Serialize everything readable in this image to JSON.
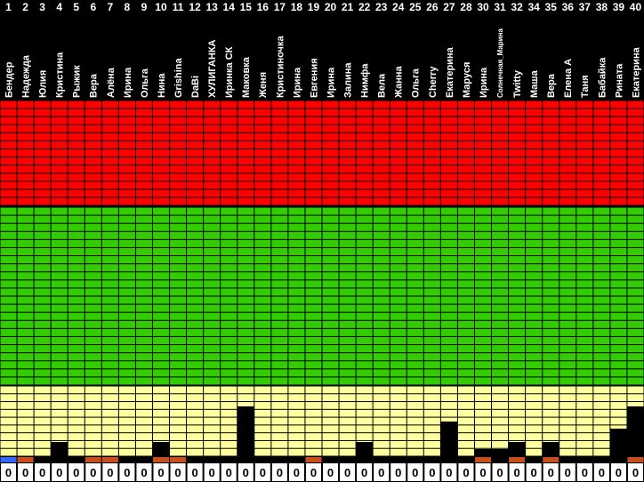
{
  "columns": [
    {
      "number": 1,
      "name": "Бендер",
      "value": 0
    },
    {
      "number": 2,
      "name": "Надежда",
      "value": 0
    },
    {
      "number": 3,
      "name": "Юлия",
      "value": 0
    },
    {
      "number": 4,
      "name": "Кристина",
      "value": 0
    },
    {
      "number": 5,
      "name": "Рыжик",
      "value": 0
    },
    {
      "number": 6,
      "name": "Вера",
      "value": 0
    },
    {
      "number": 7,
      "name": "Алёна",
      "value": 0
    },
    {
      "number": 8,
      "name": "Ирина",
      "value": 0
    },
    {
      "number": 9,
      "name": "Ольга",
      "value": 0
    },
    {
      "number": 10,
      "name": "Нина",
      "value": 0
    },
    {
      "number": 11,
      "name": "Grishina",
      "value": 0
    },
    {
      "number": 12,
      "name": "DaBi",
      "value": 0
    },
    {
      "number": 13,
      "name": "ХУЛИГАНКА",
      "value": 0
    },
    {
      "number": 14,
      "name": "Иринка СК",
      "value": 0
    },
    {
      "number": 15,
      "name": "Маковка",
      "value": 0
    },
    {
      "number": 16,
      "name": "Женя",
      "value": 0
    },
    {
      "number": 17,
      "name": "Кристиночка",
      "value": 0
    },
    {
      "number": 18,
      "name": "Ирина",
      "value": 0
    },
    {
      "number": 19,
      "name": "Евгения",
      "value": 0
    },
    {
      "number": 20,
      "name": "Ирина",
      "value": 0
    },
    {
      "number": 21,
      "name": "Залина",
      "value": 0
    },
    {
      "number": 22,
      "name": "Нимфа",
      "value": 0
    },
    {
      "number": 23,
      "name": "Вела",
      "value": 0
    },
    {
      "number": 24,
      "name": "Жанна",
      "value": 0
    },
    {
      "number": 25,
      "name": "Ольга",
      "value": 0
    },
    {
      "number": 26,
      "name": "Cherry",
      "value": 0
    },
    {
      "number": 27,
      "name": "Екатерина",
      "value": 0
    },
    {
      "number": 28,
      "name": "Маруся",
      "value": 0
    },
    {
      "number": 30,
      "name": "Ирина",
      "value": 0
    },
    {
      "number": 31,
      "name": "Солнечная_Марина",
      "value": 0
    },
    {
      "number": 32,
      "name": "Twitty",
      "value": 0
    },
    {
      "number": 34,
      "name": "Маша",
      "value": 0
    },
    {
      "number": 35,
      "name": "Вера",
      "value": 0
    },
    {
      "number": 36,
      "name": "Елена А",
      "value": 0
    },
    {
      "number": 37,
      "name": "Таня",
      "value": 0
    },
    {
      "number": 38,
      "name": "Бабайка",
      "value": 0
    },
    {
      "number": 39,
      "name": "Рината",
      "value": 0
    },
    {
      "number": 40,
      "name": "Екатерина",
      "value": 0
    }
  ]
}
